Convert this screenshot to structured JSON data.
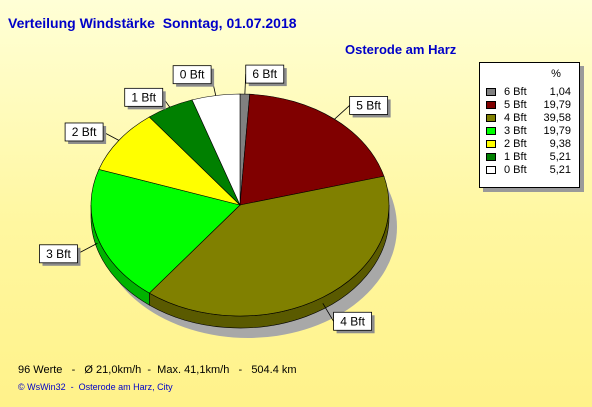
{
  "header": {
    "title": "Verteilung Windstärke  Sonntag, 01.07.2018",
    "location": "Osterode am Harz"
  },
  "chart_data": {
    "type": "pie",
    "title": "Verteilung Windstärke  Sonntag, 01.07.2018",
    "subtitle": "Osterode am Harz",
    "categories": [
      "6 Bft",
      "5 Bft",
      "4 Bft",
      "3 Bft",
      "2 Bft",
      "1 Bft",
      "0 Bft"
    ],
    "values": [
      1.04,
      19.79,
      39.58,
      19.79,
      9.38,
      5.21,
      5.21
    ],
    "value_labels": [
      "1,04",
      "19,79",
      "39,58",
      "19,79",
      "9,38",
      "5,21",
      "5,21"
    ],
    "colors": [
      "#808080",
      "#800000",
      "#808000",
      "#00ff00",
      "#ffff00",
      "#008000",
      "#ffffff"
    ],
    "legend": {
      "position": "right",
      "header": "%"
    }
  },
  "stats_line": "96 Werte   -   Ø 21,0km/h  -  Max. 41,1km/h   -   504.4 km",
  "footer": "© WsWin32  -  Osterode am Harz, City"
}
